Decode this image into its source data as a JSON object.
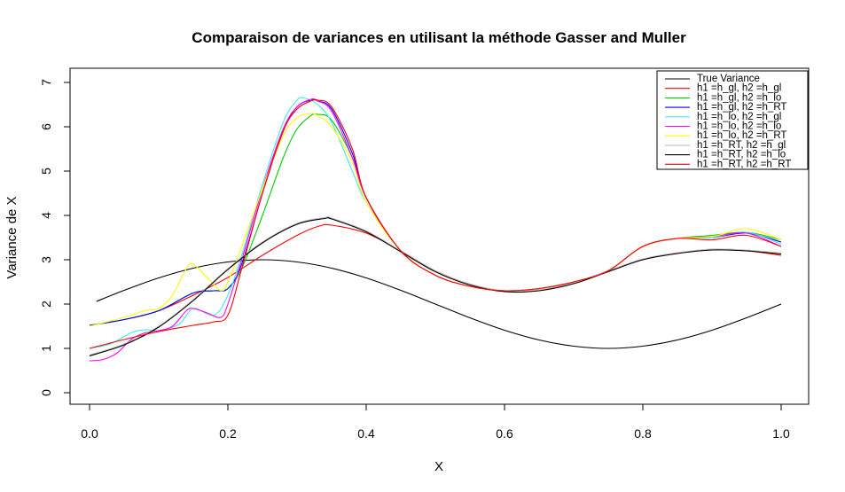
{
  "chart_data": {
    "type": "line",
    "title": "Comparaison de variances en utilisant la méthode Gasser and Muller",
    "xlabel": "X",
    "ylabel": "Variance de X",
    "xlim": [
      0,
      1
    ],
    "ylim": [
      0,
      7
    ],
    "xticks": [
      0.0,
      0.2,
      0.4,
      0.6,
      0.8,
      1.0
    ],
    "xtick_labels": [
      "0.0",
      "0.2",
      "0.4",
      "0.6",
      "0.8",
      "1.0"
    ],
    "yticks": [
      0,
      1,
      2,
      3,
      4,
      5,
      6,
      7
    ],
    "ytick_labels": [
      "0",
      "1",
      "2",
      "3",
      "4",
      "5",
      "6",
      "7"
    ],
    "grid": false,
    "legend_position": "top-right",
    "series": [
      {
        "name": "True Variance",
        "color": "#000000",
        "x": [
          0.01,
          0.05,
          0.1,
          0.15,
          0.2,
          0.25,
          0.3,
          0.35,
          0.4,
          0.45,
          0.5,
          0.55,
          0.6,
          0.65,
          0.7,
          0.75,
          0.8,
          0.85,
          0.9,
          0.95,
          1.0
        ],
        "y": [
          2.06,
          2.31,
          2.59,
          2.81,
          2.95,
          3.0,
          2.95,
          2.81,
          2.59,
          2.31,
          2.0,
          1.69,
          1.41,
          1.19,
          1.05,
          1.0,
          1.05,
          1.19,
          1.41,
          1.69,
          2.0
        ]
      },
      {
        "name": "h1 =h_gl, h2 =h_gl",
        "color": "#ff0000",
        "x": [
          0.0,
          0.05,
          0.1,
          0.15,
          0.2,
          0.25,
          0.3,
          0.33,
          0.35,
          0.4,
          0.45,
          0.5,
          0.55,
          0.6,
          0.65,
          0.7,
          0.75,
          0.8,
          0.85,
          0.9,
          0.95,
          1.0
        ],
        "y": [
          1.52,
          1.65,
          1.85,
          2.2,
          2.6,
          3.1,
          3.55,
          3.75,
          3.78,
          3.6,
          3.2,
          2.75,
          2.45,
          2.3,
          2.32,
          2.48,
          2.75,
          3.0,
          3.15,
          3.22,
          3.2,
          3.1
        ]
      },
      {
        "name": "h1 =h_gl, h2 =h_lo",
        "color": "#00cc00",
        "x": [
          0.0,
          0.05,
          0.1,
          0.15,
          0.18,
          0.2,
          0.22,
          0.25,
          0.28,
          0.3,
          0.32,
          0.33,
          0.35,
          0.38,
          0.4,
          0.45,
          0.5,
          0.55,
          0.6,
          0.65,
          0.7,
          0.75,
          0.8,
          0.85,
          0.9,
          0.95,
          1.0
        ],
        "y": [
          1.52,
          1.65,
          1.85,
          2.25,
          2.3,
          2.35,
          2.8,
          4.0,
          5.3,
          5.95,
          6.25,
          6.28,
          6.15,
          5.3,
          4.4,
          3.2,
          2.65,
          2.4,
          2.3,
          2.35,
          2.5,
          2.75,
          3.3,
          3.48,
          3.55,
          3.62,
          3.45
        ]
      },
      {
        "name": "h1 =h_gl, h2 =h_RT",
        "color": "#0000ff",
        "x": [
          0.0,
          0.05,
          0.1,
          0.15,
          0.18,
          0.2,
          0.22,
          0.25,
          0.28,
          0.3,
          0.32,
          0.33,
          0.35,
          0.38,
          0.4,
          0.45,
          0.5,
          0.55,
          0.6,
          0.65,
          0.7,
          0.75,
          0.8,
          0.85,
          0.9,
          0.95,
          1.0
        ],
        "y": [
          1.52,
          1.65,
          1.85,
          2.25,
          2.3,
          2.35,
          2.9,
          4.5,
          5.9,
          6.45,
          6.6,
          6.58,
          6.4,
          5.4,
          4.4,
          3.2,
          2.65,
          2.4,
          2.3,
          2.35,
          2.5,
          2.75,
          3.3,
          3.48,
          3.5,
          3.6,
          3.4
        ]
      },
      {
        "name": "h1 =h_lo, h2 =h_gl",
        "color": "#40e8e8",
        "x": [
          0.0,
          0.03,
          0.06,
          0.08,
          0.1,
          0.13,
          0.15,
          0.18,
          0.2,
          0.22,
          0.25,
          0.28,
          0.3,
          0.31,
          0.33,
          0.35,
          0.38,
          0.4,
          0.45,
          0.5,
          0.55,
          0.6,
          0.65,
          0.7,
          0.75,
          0.8,
          0.85,
          0.9,
          0.95,
          1.0
        ],
        "y": [
          1.0,
          1.1,
          1.35,
          1.42,
          1.4,
          1.55,
          1.9,
          1.75,
          2.2,
          3.1,
          4.7,
          6.1,
          6.6,
          6.65,
          6.5,
          6.1,
          5.0,
          4.3,
          3.2,
          2.65,
          2.4,
          2.3,
          2.35,
          2.5,
          2.75,
          3.3,
          3.48,
          3.5,
          3.62,
          3.35
        ]
      },
      {
        "name": "h1 =h_lo, h2 =h_lo",
        "color": "#ff00ff",
        "x": [
          0.0,
          0.02,
          0.04,
          0.06,
          0.08,
          0.1,
          0.12,
          0.14,
          0.15,
          0.17,
          0.19,
          0.2,
          0.22,
          0.25,
          0.28,
          0.3,
          0.32,
          0.33,
          0.35,
          0.38,
          0.4,
          0.45,
          0.5,
          0.55,
          0.6,
          0.65,
          0.7,
          0.75,
          0.8,
          0.85,
          0.9,
          0.95,
          1.0
        ],
        "y": [
          0.72,
          0.75,
          0.9,
          1.2,
          1.35,
          1.4,
          1.5,
          1.85,
          1.9,
          1.8,
          1.7,
          2.0,
          3.0,
          4.6,
          5.95,
          6.45,
          6.62,
          6.58,
          6.35,
          5.3,
          4.4,
          3.2,
          2.65,
          2.4,
          2.3,
          2.35,
          2.5,
          2.75,
          3.3,
          3.48,
          3.52,
          3.6,
          3.3
        ]
      },
      {
        "name": "h1 =h_lo, h2 =h_RT",
        "color": "#ffff00",
        "x": [
          0.0,
          0.05,
          0.08,
          0.1,
          0.12,
          0.14,
          0.15,
          0.17,
          0.19,
          0.2,
          0.22,
          0.25,
          0.28,
          0.3,
          0.32,
          0.33,
          0.35,
          0.38,
          0.4,
          0.45,
          0.5,
          0.55,
          0.6,
          0.65,
          0.7,
          0.75,
          0.8,
          0.85,
          0.9,
          0.95,
          1.0
        ],
        "y": [
          1.5,
          1.7,
          1.85,
          1.9,
          2.2,
          2.8,
          2.9,
          2.6,
          2.3,
          2.5,
          3.3,
          4.6,
          5.8,
          6.2,
          6.3,
          6.25,
          6.0,
          5.2,
          4.3,
          3.2,
          2.65,
          2.4,
          2.3,
          2.35,
          2.5,
          2.75,
          3.3,
          3.48,
          3.52,
          3.7,
          3.45
        ]
      },
      {
        "name": "h1 =h_RT, h2 =h_gl",
        "color": "#bebebe",
        "x": [
          0.0,
          0.05,
          0.1,
          0.15,
          0.2,
          0.25,
          0.3,
          0.34,
          0.35,
          0.4,
          0.45,
          0.5,
          0.55,
          0.6,
          0.65,
          0.7,
          0.75,
          0.8,
          0.85,
          0.9,
          0.95,
          1.0
        ],
        "y": [
          0.85,
          1.1,
          1.5,
          2.1,
          2.8,
          3.4,
          3.82,
          3.95,
          3.94,
          3.65,
          3.2,
          2.75,
          2.45,
          2.3,
          2.32,
          2.48,
          2.75,
          3.02,
          3.16,
          3.24,
          3.22,
          3.15
        ]
      },
      {
        "name": "h1 =h_RT, h2 =h_lo",
        "color": "#000000",
        "x": [
          0.0,
          0.05,
          0.1,
          0.15,
          0.2,
          0.25,
          0.3,
          0.34,
          0.35,
          0.4,
          0.45,
          0.5,
          0.55,
          0.6,
          0.65,
          0.7,
          0.75,
          0.8,
          0.85,
          0.9,
          0.95,
          1.0
        ],
        "y": [
          0.83,
          1.08,
          1.48,
          2.08,
          2.78,
          3.38,
          3.8,
          3.93,
          3.92,
          3.63,
          3.18,
          2.73,
          2.43,
          2.28,
          2.3,
          2.46,
          2.73,
          3.0,
          3.14,
          3.22,
          3.2,
          3.13
        ]
      },
      {
        "name": "h1 =h_RT, h2 =h_RT",
        "color": "#ff0000",
        "x": [
          0.0,
          0.05,
          0.1,
          0.15,
          0.18,
          0.2,
          0.22,
          0.25,
          0.28,
          0.3,
          0.32,
          0.33,
          0.35,
          0.38,
          0.4,
          0.45,
          0.5,
          0.55,
          0.6,
          0.65,
          0.7,
          0.75,
          0.8,
          0.85,
          0.9,
          0.95,
          1.0
        ],
        "y": [
          1.0,
          1.2,
          1.38,
          1.52,
          1.6,
          1.75,
          2.8,
          4.5,
          5.9,
          6.4,
          6.58,
          6.6,
          6.45,
          5.5,
          4.4,
          3.2,
          2.65,
          2.4,
          2.3,
          2.35,
          2.5,
          2.75,
          3.3,
          3.48,
          3.45,
          3.55,
          3.3
        ]
      }
    ]
  }
}
